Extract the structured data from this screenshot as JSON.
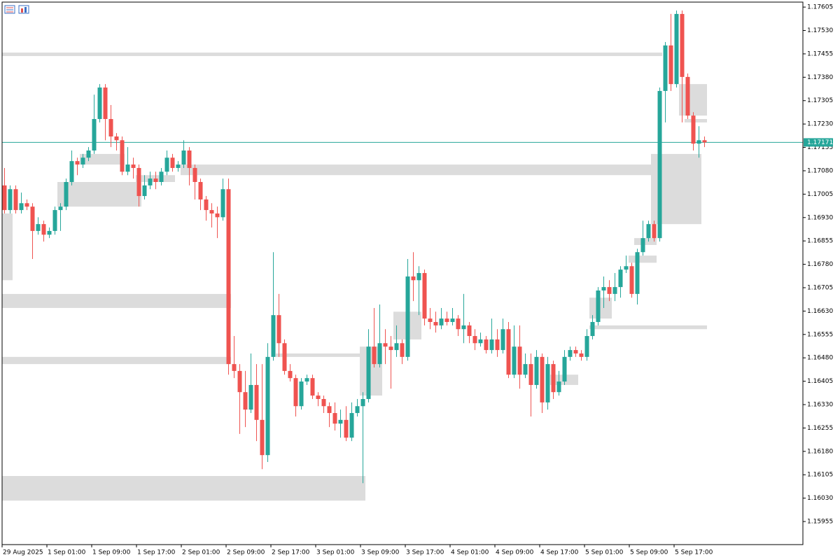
{
  "chart_data": {
    "type": "candlestick",
    "up_color": "#26a69a",
    "down_color": "#ef5350",
    "zone_color": "#dcdcdc",
    "last_price": 1.17171,
    "last_price_color": "#26a69a",
    "ylim": [
      1.15881,
      1.17621
    ],
    "yticks": [
      1.17605,
      {
        "value": 1.1753,
        "label": "1.17530"
      },
      1.17455,
      {
        "value": 1.1738,
        "label": "1.17380"
      },
      1.17305,
      {
        "value": 1.1723,
        "label": "1.17230"
      },
      1.17155,
      {
        "value": 1.1708,
        "label": "1.17080"
      },
      1.17005,
      {
        "value": 1.1693,
        "label": "1.16930"
      },
      1.16855,
      {
        "value": 1.1678,
        "label": "1.16780"
      },
      1.16705,
      {
        "value": 1.1663,
        "label": "1.16630"
      },
      1.16555,
      {
        "value": 1.1648,
        "label": "1.16480"
      },
      1.16405,
      {
        "value": 1.1633,
        "label": "1.16330"
      },
      1.16255,
      {
        "value": 1.1618,
        "label": "1.16180"
      },
      1.16105,
      {
        "value": 1.1603,
        "label": "1.16030"
      },
      1.15955
    ],
    "xticks": [
      {
        "value": 0,
        "label": "29 Aug 2025"
      },
      {
        "value": 8,
        "label": "1 Sep 01:00"
      },
      {
        "value": 16,
        "label": "1 Sep 09:00"
      },
      {
        "value": 24,
        "label": "1 Sep 17:00"
      },
      {
        "value": 32,
        "label": "2 Sep 01:00"
      },
      {
        "value": 40,
        "label": "2 Sep 09:00"
      },
      {
        "value": 48,
        "label": "2 Sep 17:00"
      },
      {
        "value": 56,
        "label": "3 Sep 01:00"
      },
      {
        "value": 64,
        "label": "3 Sep 09:00"
      },
      {
        "value": 72,
        "label": "3 Sep 17:00"
      },
      {
        "value": 80,
        "label": "4 Sep 01:00"
      },
      {
        "value": 88,
        "label": "4 Sep 09:00"
      },
      {
        "value": 96,
        "label": "4 Sep 17:00"
      },
      {
        "value": 104,
        "label": "5 Sep 01:00"
      },
      {
        "value": 112,
        "label": "5 Sep 09:00"
      },
      {
        "value": 120,
        "label": "5 Sep 17:00"
      }
    ],
    "ohlc": [
      [
        1.17033,
        1.17089,
        1.16943,
        1.16954
      ],
      [
        1.16954,
        1.17033,
        1.16943,
        1.17021
      ],
      [
        1.17021,
        1.17033,
        1.16943,
        1.16954
      ],
      [
        1.16954,
        1.1701,
        1.16943,
        1.16976
      ],
      [
        1.16976,
        1.16988,
        1.16954,
        1.16965
      ],
      [
        1.16965,
        1.16976,
        1.16797,
        1.16887
      ],
      [
        1.16887,
        1.16931,
        1.16875,
        1.16909
      ],
      [
        1.16909,
        1.1692,
        1.16853,
        1.16875
      ],
      [
        1.16875,
        1.16898,
        1.16864,
        1.16887
      ],
      [
        1.16887,
        1.16965,
        1.16875,
        1.16954
      ],
      [
        1.16954,
        1.16976,
        1.16887,
        1.16965
      ],
      [
        1.16965,
        1.17055,
        1.16954,
        1.17044
      ],
      [
        1.17044,
        1.17145,
        1.17033,
        1.17111
      ],
      [
        1.17111,
        1.17122,
        1.17066,
        1.171
      ],
      [
        1.171,
        1.17134,
        1.17089,
        1.17122
      ],
      [
        1.17122,
        1.17156,
        1.17111,
        1.17145
      ],
      [
        1.17145,
        1.17324,
        1.17134,
        1.17246
      ],
      [
        1.17246,
        1.17358,
        1.17235,
        1.17347
      ],
      [
        1.17347,
        1.17358,
        1.17178,
        1.17246
      ],
      [
        1.17246,
        1.17291,
        1.17156,
        1.1719
      ],
      [
        1.1719,
        1.17201,
        1.17145,
        1.17178
      ],
      [
        1.17178,
        1.1719,
        1.17066,
        1.17077
      ],
      [
        1.17077,
        1.17156,
        1.17066,
        1.171
      ],
      [
        1.171,
        1.17122,
        1.17055,
        1.17089
      ],
      [
        1.17089,
        1.171,
        1.16965,
        1.16999
      ],
      [
        1.16999,
        1.17066,
        1.16988,
        1.17033
      ],
      [
        1.17033,
        1.17077,
        1.17021,
        1.17055
      ],
      [
        1.17055,
        1.17077,
        1.17021,
        1.17044
      ],
      [
        1.17044,
        1.17089,
        1.17033,
        1.17077
      ],
      [
        1.17077,
        1.17145,
        1.17066,
        1.17122
      ],
      [
        1.17122,
        1.17134,
        1.17077,
        1.17089
      ],
      [
        1.17089,
        1.17111,
        1.17077,
        1.171
      ],
      [
        1.171,
        1.17178,
        1.17089,
        1.17145
      ],
      [
        1.17145,
        1.17156,
        1.17033,
        1.17089
      ],
      [
        1.17089,
        1.171,
        1.16988,
        1.17044
      ],
      [
        1.17044,
        1.17055,
        1.16954,
        1.16988
      ],
      [
        1.16988,
        1.16999,
        1.1692,
        1.16954
      ],
      [
        1.16954,
        1.16976,
        1.16898,
        1.16943
      ],
      [
        1.16943,
        1.16965,
        1.16864,
        1.16931
      ],
      [
        1.16931,
        1.17055,
        1.1692,
        1.17021
      ],
      [
        1.17021,
        1.17055,
        1.16426,
        1.1646
      ],
      [
        1.1646,
        1.1655,
        1.16415,
        1.16438
      ],
      [
        1.16438,
        1.1646,
        1.16236,
        1.1637
      ],
      [
        1.1637,
        1.16438,
        1.16258,
        1.16314
      ],
      [
        1.16314,
        1.16494,
        1.16303,
        1.16393
      ],
      [
        1.16393,
        1.1646,
        1.16213,
        1.16281
      ],
      [
        1.16281,
        1.1646,
        1.16123,
        1.16168
      ],
      [
        1.16168,
        1.16527,
        1.16146,
        1.16483
      ],
      [
        1.16483,
        1.16819,
        1.16471,
        1.16617
      ],
      [
        1.16617,
        1.16685,
        1.16483,
        1.16527
      ],
      [
        1.16527,
        1.16539,
        1.16426,
        1.16438
      ],
      [
        1.16438,
        1.1646,
        1.16404,
        1.16415
      ],
      [
        1.16415,
        1.16426,
        1.16292,
        1.16325
      ],
      [
        1.16325,
        1.16415,
        1.16314,
        1.16404
      ],
      [
        1.16404,
        1.16426,
        1.16393,
        1.16415
      ],
      [
        1.16415,
        1.16426,
        1.16348,
        1.16359
      ],
      [
        1.16359,
        1.1637,
        1.16325,
        1.16348
      ],
      [
        1.16348,
        1.16359,
        1.16303,
        1.16325
      ],
      [
        1.16325,
        1.16337,
        1.16258,
        1.16303
      ],
      [
        1.16303,
        1.16337,
        1.16247,
        1.16269
      ],
      [
        1.16269,
        1.16314,
        1.16224,
        1.16281
      ],
      [
        1.16281,
        1.16325,
        1.16213,
        1.16224
      ],
      [
        1.16224,
        1.16337,
        1.16213,
        1.16303
      ],
      [
        1.16303,
        1.16348,
        1.16292,
        1.16325
      ],
      [
        1.16325,
        1.1637,
        1.16078,
        1.16348
      ],
      [
        1.16348,
        1.16572,
        1.16337,
        1.16516
      ],
      [
        1.16516,
        1.1664,
        1.16449,
        1.1646
      ],
      [
        1.1646,
        1.16651,
        1.16449,
        1.16527
      ],
      [
        1.16527,
        1.16572,
        1.1646,
        1.16516
      ],
      [
        1.16516,
        1.1655,
        1.16381,
        1.16505
      ],
      [
        1.16505,
        1.16584,
        1.16483,
        1.16527
      ],
      [
        1.16527,
        1.16539,
        1.1646,
        1.16483
      ],
      [
        1.16483,
        1.16797,
        1.16471,
        1.16741
      ],
      [
        1.16741,
        1.16819,
        1.16662,
        1.16729
      ],
      [
        1.16729,
        1.16774,
        1.16617,
        1.16752
      ],
      [
        1.16752,
        1.16763,
        1.16584,
        1.16606
      ],
      [
        1.16606,
        1.1664,
        1.16572,
        1.16595
      ],
      [
        1.16595,
        1.16628,
        1.16561,
        1.16584
      ],
      [
        1.16584,
        1.1664,
        1.16572,
        1.16606
      ],
      [
        1.16606,
        1.16628,
        1.16584,
        1.16595
      ],
      [
        1.16595,
        1.1664,
        1.16584,
        1.16606
      ],
      [
        1.16606,
        1.16617,
        1.1655,
        1.16572
      ],
      [
        1.16572,
        1.16685,
        1.16527,
        1.16584
      ],
      [
        1.16584,
        1.16595,
        1.16527,
        1.1655
      ],
      [
        1.1655,
        1.16572,
        1.16505,
        1.16527
      ],
      [
        1.16527,
        1.16561,
        1.16516,
        1.16539
      ],
      [
        1.16539,
        1.1655,
        1.16494,
        1.16505
      ],
      [
        1.16505,
        1.16606,
        1.16494,
        1.16539
      ],
      [
        1.16539,
        1.16572,
        1.16483,
        1.16505
      ],
      [
        1.16505,
        1.16606,
        1.16494,
        1.16572
      ],
      [
        1.16572,
        1.16595,
        1.16415,
        1.16426
      ],
      [
        1.16426,
        1.16584,
        1.16415,
        1.16516
      ],
      [
        1.16516,
        1.16584,
        1.16381,
        1.16426
      ],
      [
        1.16426,
        1.16494,
        1.16415,
        1.1646
      ],
      [
        1.1646,
        1.16494,
        1.16292,
        1.16393
      ],
      [
        1.16393,
        1.16505,
        1.16381,
        1.16483
      ],
      [
        1.16483,
        1.16494,
        1.16303,
        1.16337
      ],
      [
        1.16337,
        1.16483,
        1.16314,
        1.1646
      ],
      [
        1.1646,
        1.16471,
        1.16348,
        1.1637
      ],
      [
        1.1637,
        1.16438,
        1.16359,
        1.16404
      ],
      [
        1.16404,
        1.16505,
        1.16393,
        1.16483
      ],
      [
        1.16483,
        1.16516,
        1.16471,
        1.16505
      ],
      [
        1.16505,
        1.16516,
        1.16483,
        1.16494
      ],
      [
        1.16494,
        1.16505,
        1.16471,
        1.16483
      ],
      [
        1.16483,
        1.16572,
        1.16471,
        1.1655
      ],
      [
        1.1655,
        1.16617,
        1.16539,
        1.16595
      ],
      [
        1.16595,
        1.16707,
        1.16584,
        1.16696
      ],
      [
        1.16696,
        1.16741,
        1.1664,
        1.16707
      ],
      [
        1.16707,
        1.16729,
        1.16662,
        1.16685
      ],
      [
        1.16685,
        1.16752,
        1.16662,
        1.16707
      ],
      [
        1.16707,
        1.16774,
        1.16673,
        1.16763
      ],
      [
        1.16763,
        1.16808,
        1.16752,
        1.16774
      ],
      [
        1.16774,
        1.16785,
        1.16673,
        1.16685
      ],
      [
        1.16685,
        1.1683,
        1.16651,
        1.16819
      ],
      [
        1.16819,
        1.1692,
        1.16808,
        1.16864
      ],
      [
        1.16864,
        1.1692,
        1.16853,
        1.16909
      ],
      [
        1.16909,
        1.1692,
        1.16853,
        1.16864
      ],
      [
        1.16864,
        1.17347,
        1.16853,
        1.17336
      ],
      [
        1.17336,
        1.17493,
        1.17235,
        1.17482
      ],
      [
        1.17482,
        1.17583,
        1.17336,
        1.17358
      ],
      [
        1.17358,
        1.17594,
        1.17347,
        1.17583
      ],
      [
        1.17583,
        1.17594,
        1.17235,
        1.17381
      ],
      [
        1.17381,
        1.17392,
        1.17246,
        1.17257
      ],
      [
        1.17257,
        1.17268,
        1.17145,
        1.17167
      ],
      [
        1.17167,
        1.17223,
        1.17122,
        1.17178
      ],
      [
        1.17178,
        1.1719,
        1.17156,
        1.17171
      ]
    ],
    "zones": [
      {
        "from": 0,
        "to": 117,
        "high": 1.17459,
        "low": 1.17448
      },
      {
        "from": 0,
        "to": 1,
        "high": 1.16943,
        "low": 1.16729
      },
      {
        "from": 0,
        "to": 40,
        "high": 1.16685,
        "low": 1.1664
      },
      {
        "from": 0,
        "to": 40,
        "high": 1.16483,
        "low": 1.1646
      },
      {
        "from": 0,
        "to": 64,
        "high": 1.16101,
        "low": 1.16022
      },
      {
        "from": 10,
        "to": 24,
        "high": 1.17044,
        "low": 1.16965
      },
      {
        "from": 14,
        "to": 21,
        "high": 1.17134,
        "low": 1.171
      },
      {
        "from": 24,
        "to": 30,
        "high": 1.17066,
        "low": 1.17044
      },
      {
        "from": 32,
        "to": 116,
        "high": 1.171,
        "low": 1.17066
      },
      {
        "from": 49,
        "to": 64,
        "high": 1.16494,
        "low": 1.16483
      },
      {
        "from": 64,
        "to": 67,
        "high": 1.16516,
        "low": 1.16359
      },
      {
        "from": 70,
        "to": 74,
        "high": 1.16628,
        "low": 1.16539
      },
      {
        "from": 98,
        "to": 102,
        "high": 1.16426,
        "low": 1.16393
      },
      {
        "from": 105,
        "to": 108,
        "high": 1.16673,
        "low": 1.16606
      },
      {
        "from": 105,
        "to": 125,
        "high": 1.16584,
        "low": 1.16572
      },
      {
        "from": 112,
        "to": 116,
        "high": 1.16808,
        "low": 1.16785
      },
      {
        "from": 113,
        "to": 116,
        "high": 1.16864,
        "low": 1.16842
      },
      {
        "from": 116,
        "to": 124,
        "high": 1.17134,
        "low": 1.16909
      },
      {
        "from": 121,
        "to": 125,
        "high": 1.17358,
        "low": 1.17257
      },
      {
        "from": 122,
        "to": 125,
        "high": 1.17246,
        "low": 1.17235
      }
    ]
  }
}
